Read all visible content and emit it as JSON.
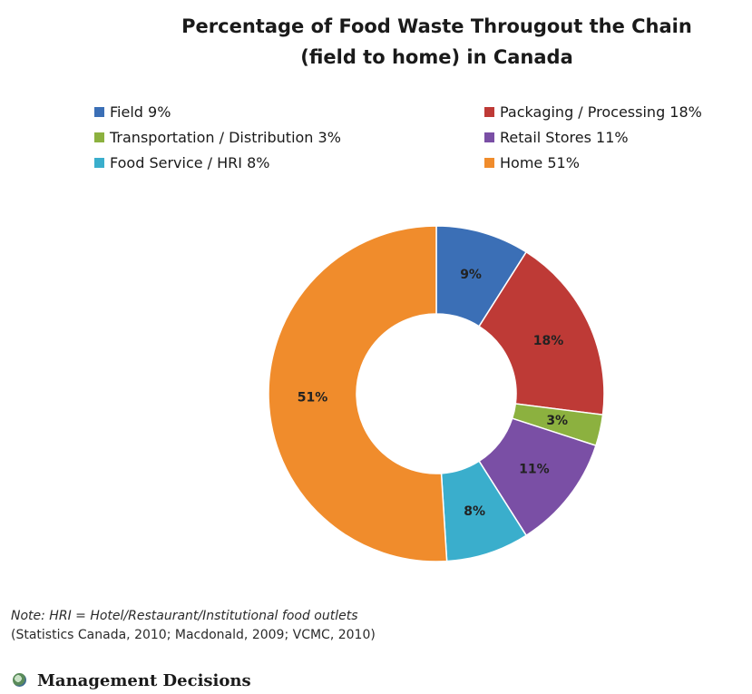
{
  "chart_data": {
    "type": "pie",
    "title_lines": [
      "Percentage of Food Waste Througout the Chain",
      "(field to home) in Canada"
    ],
    "legend_position": "top",
    "donut": true,
    "categories": [
      "Field",
      "Packaging / Processing",
      "Transportation / Distribution",
      "Retail Stores",
      "Food Service / HRI",
      "Home"
    ],
    "values": [
      9,
      18,
      3,
      11,
      8,
      51
    ],
    "legend_labels": [
      "Field 9%",
      "Packaging / Processing 18%",
      "Transportation / Distribution 3%",
      "Retail Stores 11%",
      "Food Service / HRI 8%",
      "Home 51%"
    ],
    "data_labels": [
      "9%",
      "18%",
      "3%",
      "11%",
      "8%",
      "51%"
    ],
    "colors": [
      "#3b6fb6",
      "#be3a36",
      "#8cb13f",
      "#7a4fa5",
      "#3aaecc",
      "#f08c2c"
    ]
  },
  "note": {
    "line1": "Note: HRI = Hotel/Restaurant/Institutional food outlets",
    "line2": "(Statistics Canada, 2010; Macdonald, 2009; VCMC, 2010)"
  },
  "section_heading": {
    "icon": "bullet-globe-icon",
    "label": "Management Decisions"
  }
}
